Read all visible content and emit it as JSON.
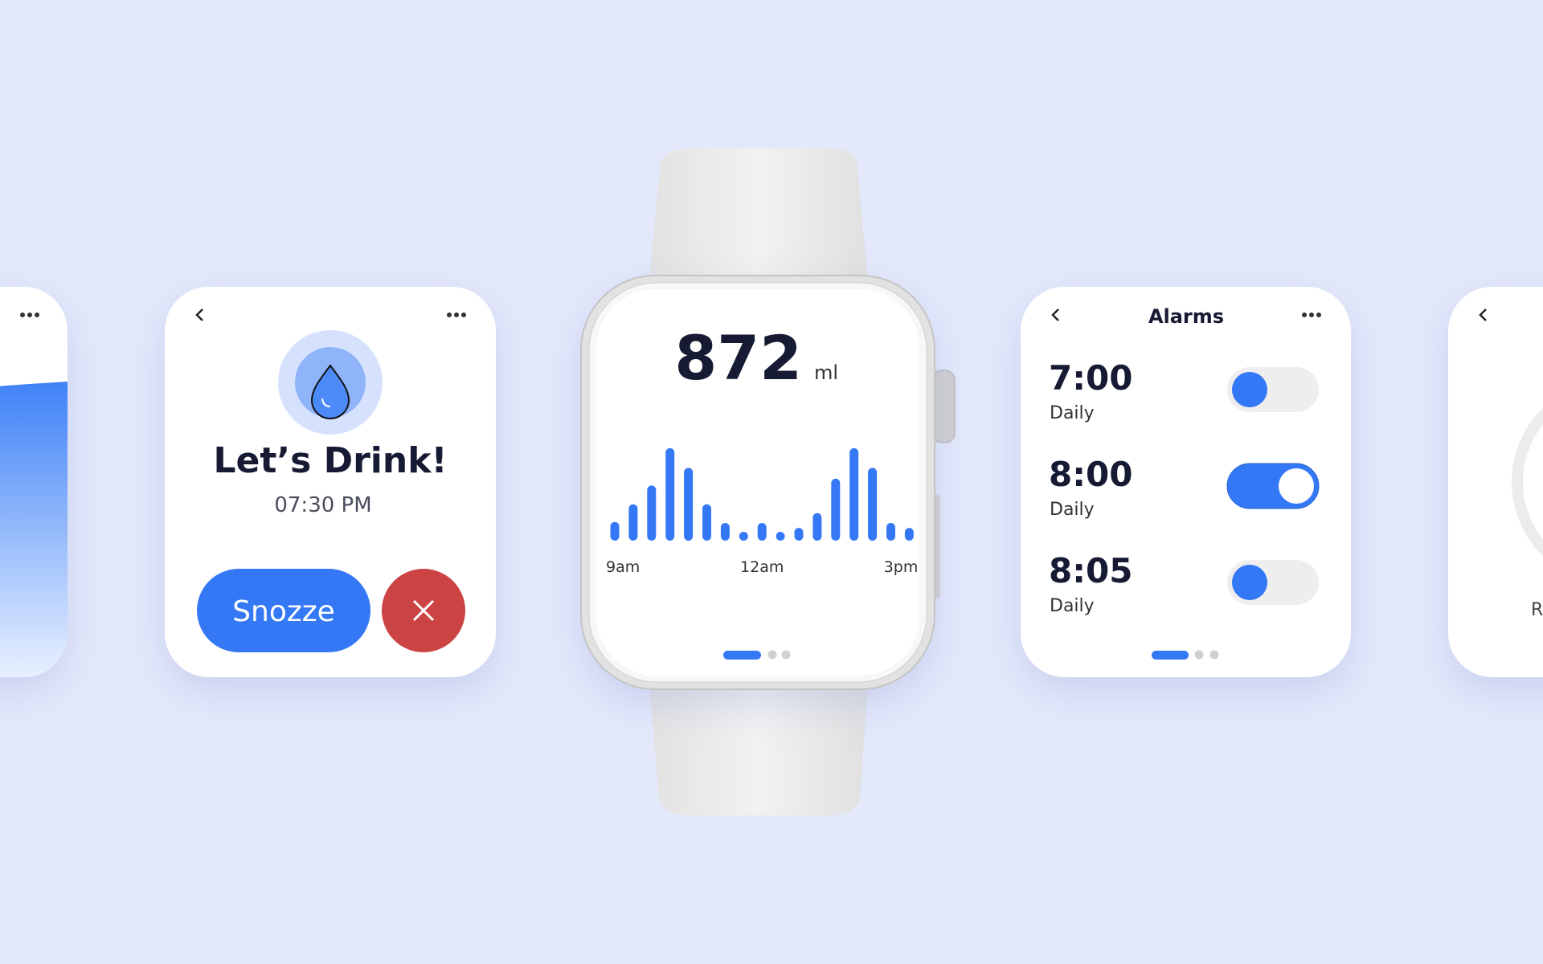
{
  "cards": {
    "alert": {
      "title": "Let’s Drink!",
      "time": "07:30 PM",
      "snooze_button": "Snozze"
    },
    "alarms": {
      "title": "Alarms",
      "items": [
        {
          "time": "7:00",
          "repeat": "Daily",
          "enabled": false
        },
        {
          "time": "8:00",
          "repeat": "Daily",
          "enabled": true
        },
        {
          "time": "8:05",
          "repeat": "Daily",
          "enabled": false
        }
      ]
    },
    "partial": {
      "label": "R"
    }
  },
  "chart_data": {
    "type": "bar",
    "total": 872,
    "unit": "ml",
    "categories": [
      "9am",
      null,
      null,
      null,
      null,
      null,
      null,
      null,
      "12am",
      null,
      null,
      null,
      null,
      null,
      null,
      null,
      "3pm"
    ],
    "values": [
      19,
      37,
      56,
      94,
      74,
      37,
      18,
      9,
      18,
      9,
      13,
      28,
      63,
      94,
      74,
      18,
      13
    ],
    "color": "#3478f6"
  }
}
